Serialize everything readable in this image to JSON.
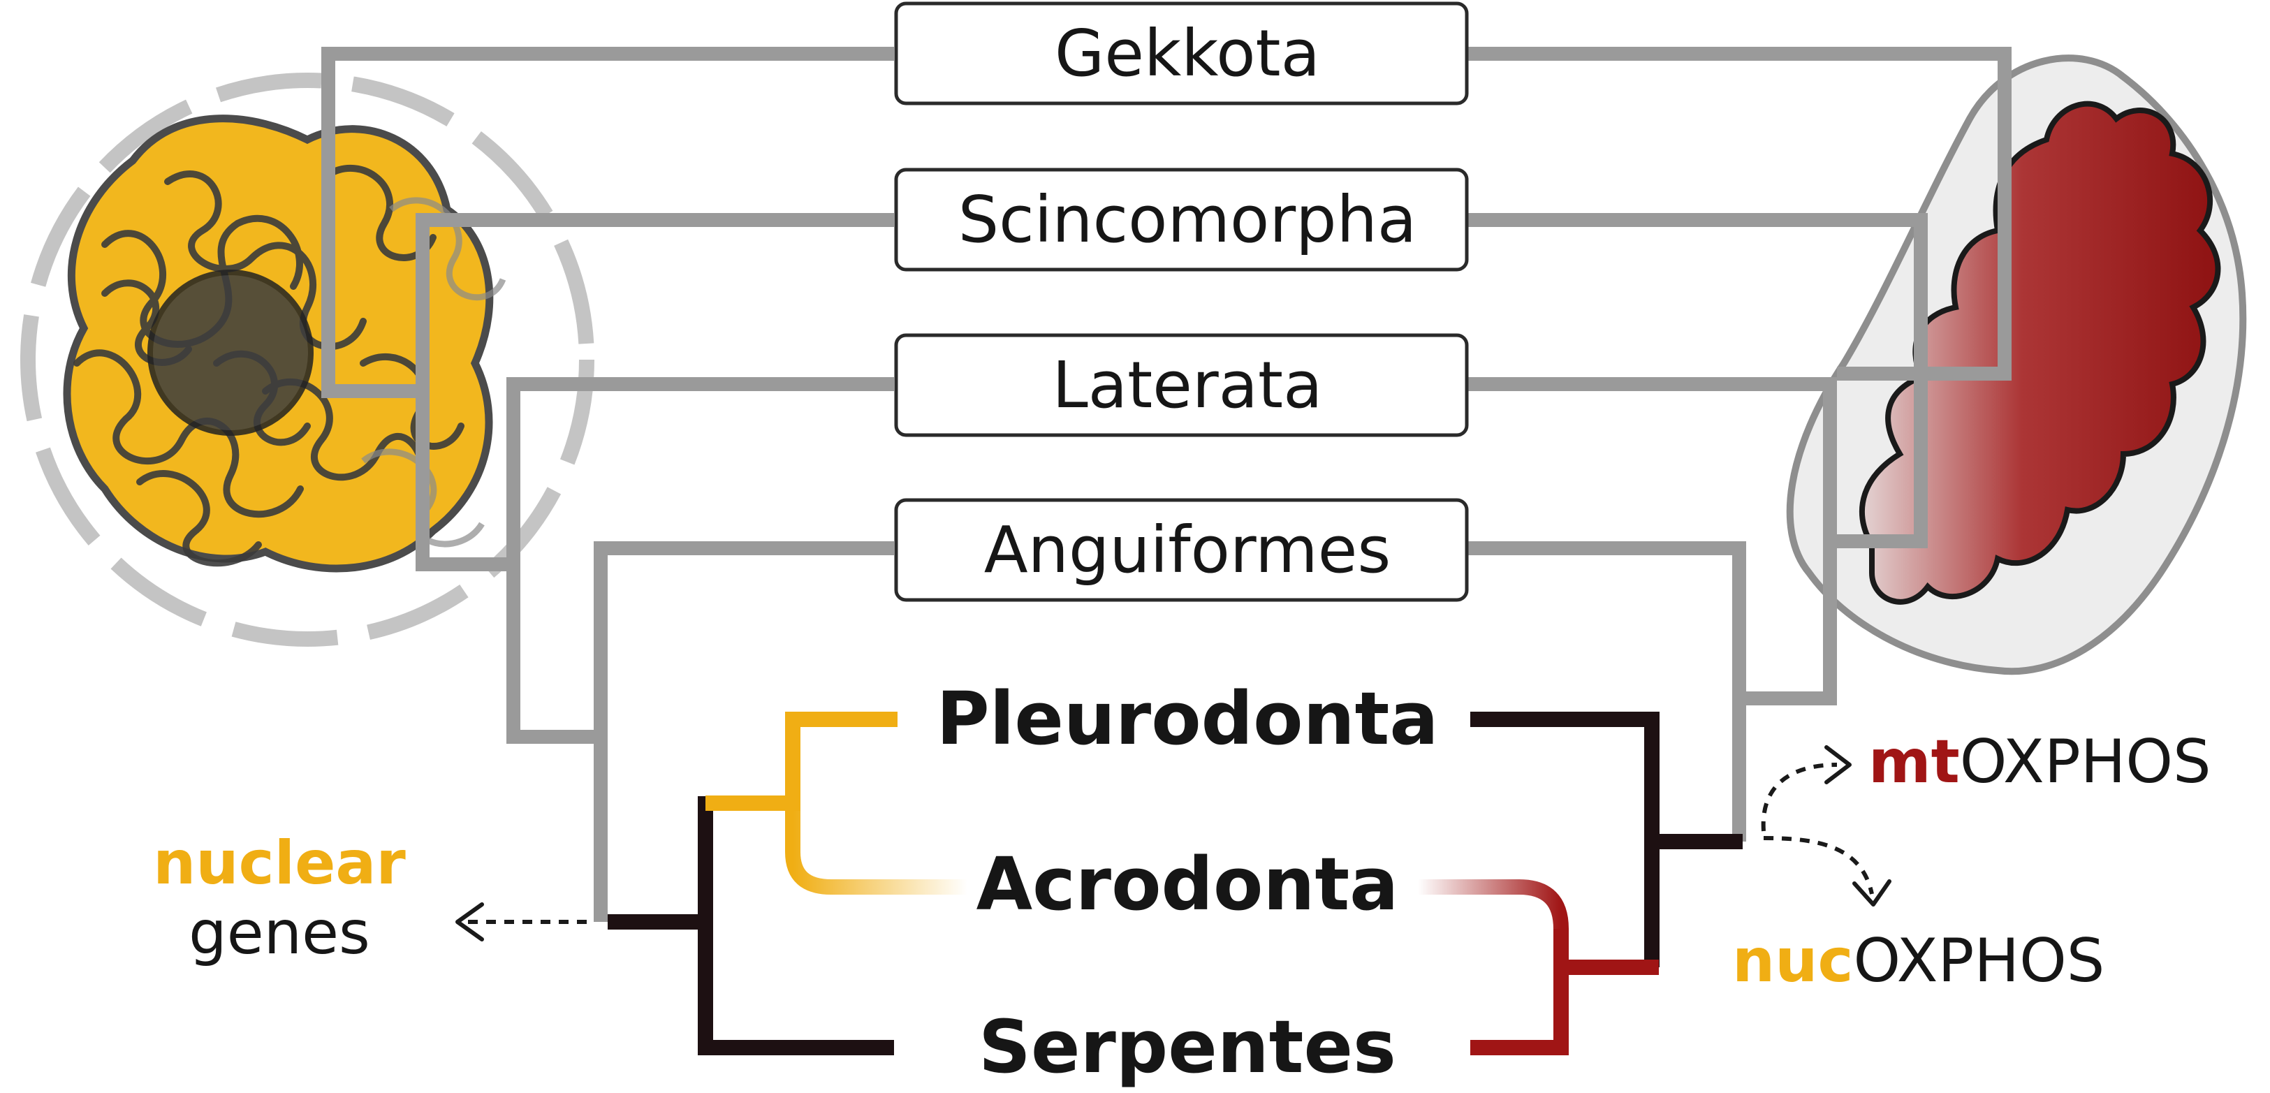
{
  "diagram": {
    "taxa_boxed": [
      {
        "label": "Gekkota"
      },
      {
        "label": "Scincomorpha"
      },
      {
        "label": "Laterata"
      },
      {
        "label": "Anguiformes"
      }
    ],
    "taxa_highlighted": [
      {
        "label": "Pleurodonta"
      },
      {
        "label": "Acrodonta"
      },
      {
        "label": "Serpentes"
      }
    ],
    "left_annotation": {
      "accent": "nuclear",
      "rest": "genes"
    },
    "right_annotations": [
      {
        "accent": "mt",
        "rest": "OXPHOS"
      },
      {
        "accent": "nuc",
        "rest": "OXPHOS"
      }
    ],
    "colors": {
      "nuclear_accent": "#f0ae14",
      "mito_accent": "#a01515",
      "tree_gray": "#9a9a9a",
      "tree_dark": "#1d1012"
    },
    "icons": {
      "left": "nucleus-chromatin-icon",
      "right": "mitochondrion-icon"
    }
  }
}
